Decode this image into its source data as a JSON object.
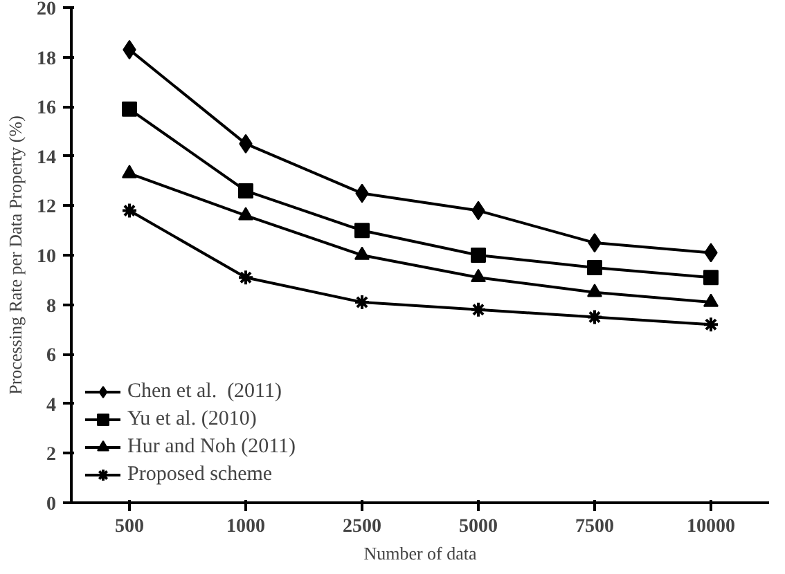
{
  "chart_data": {
    "type": "line",
    "xlabel": "Number of data",
    "ylabel": "Processing Rate per Data Property (%)",
    "categories": [
      "500",
      "1000",
      "2500",
      "5000",
      "7500",
      "10000"
    ],
    "ylim": [
      0,
      20
    ],
    "yticks": [
      0,
      2,
      4,
      6,
      8,
      10,
      12,
      14,
      16,
      18,
      20
    ],
    "grid": false,
    "legend": "bottom left",
    "series": [
      {
        "name": "Chen et al.  (2011)",
        "color": "#000000",
        "marker": "diamond",
        "values": [
          18.3,
          14.5,
          12.5,
          11.8,
          10.5,
          10.1
        ]
      },
      {
        "name": "Yu et al. (2010)",
        "color": "#000000",
        "marker": "square",
        "values": [
          15.9,
          12.6,
          11.0,
          10.0,
          9.5,
          9.1
        ]
      },
      {
        "name": "Hur and Noh (2011)",
        "color": "#000000",
        "marker": "triangle",
        "values": [
          13.3,
          11.6,
          10.0,
          9.1,
          8.5,
          8.1
        ]
      },
      {
        "name": "Proposed scheme",
        "color": "#000000",
        "marker": "cross",
        "values": [
          11.8,
          9.1,
          8.1,
          7.8,
          7.5,
          7.2
        ]
      }
    ]
  }
}
